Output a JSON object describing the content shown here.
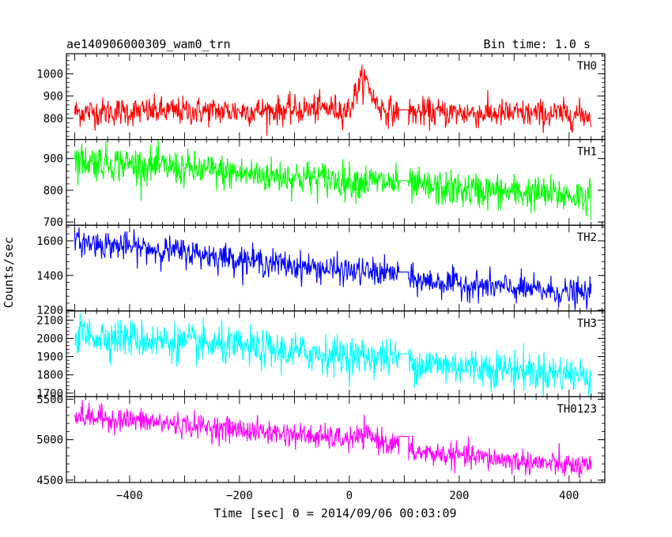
{
  "chart_data": {
    "type": "line",
    "title": "ae140906000309_wam0_trn",
    "subtitle": "Bin time: 1.0 s",
    "xlabel": "Time [sec] 0 = 2014/09/06 00:03:09",
    "ylabel": "Counts/sec",
    "xlim": [
      -515,
      465
    ],
    "xticks": [
      -400,
      -200,
      0,
      200,
      400
    ],
    "grid": false,
    "gap": [
      90,
      108
    ],
    "series": [
      {
        "name": "TH0",
        "color": "#ff0000",
        "ylim": [
          705,
          1090
        ],
        "yticks": [
          800,
          900,
          1000
        ],
        "x": [
          -500,
          -400,
          -300,
          -200,
          -100,
          -40,
          0,
          10,
          20,
          28,
          35,
          45,
          60,
          80,
          90,
          108,
          200,
          300,
          400,
          440
        ],
        "y": [
          828,
          830,
          832,
          832,
          836,
          845,
          835,
          905,
          960,
          975,
          950,
          880,
          842,
          830,
          828,
          826,
          824,
          820,
          818,
          815
        ],
        "noise": 32,
        "gap_level": 838
      },
      {
        "name": "TH1",
        "color": "#00ff00",
        "ylim": [
          690,
          960
        ],
        "yticks": [
          700,
          800,
          900
        ],
        "x": [
          -500,
          -400,
          -300,
          -200,
          -100,
          0,
          90,
          108,
          200,
          300,
          440
        ],
        "y": [
          895,
          882,
          868,
          852,
          842,
          830,
          822,
          812,
          802,
          793,
          780
        ],
        "noise": 28,
        "gap_level": 830
      },
      {
        "name": "TH2",
        "color": "#0000ff",
        "ylim": [
          1195,
          1690
        ],
        "yticks": [
          1200,
          1400,
          1600
        ],
        "x": [
          -500,
          -400,
          -300,
          -200,
          -100,
          0,
          90,
          108,
          200,
          300,
          440
        ],
        "y": [
          1595,
          1565,
          1535,
          1495,
          1455,
          1425,
          1410,
          1375,
          1350,
          1325,
          1290
        ],
        "noise": 40,
        "gap_level": 1420
      },
      {
        "name": "TH3",
        "color": "#00ffff",
        "ylim": [
          1680,
          2150
        ],
        "yticks": [
          1700,
          1800,
          1900,
          2000,
          2100
        ],
        "x": [
          -500,
          -400,
          -300,
          -200,
          -100,
          0,
          90,
          108,
          200,
          300,
          440
        ],
        "y": [
          2025,
          2000,
          1975,
          1950,
          1925,
          1905,
          1890,
          1868,
          1848,
          1830,
          1795
        ],
        "noise": 52,
        "gap_level": 1915
      },
      {
        "name": "TH0123",
        "color": "#ff00ff",
        "ylim": [
          4470,
          5530
        ],
        "yticks": [
          4500,
          5000,
          5500
        ],
        "x": [
          -500,
          -400,
          -300,
          -200,
          -100,
          0,
          30,
          90,
          108,
          200,
          300,
          440
        ],
        "y": [
          5290,
          5240,
          5180,
          5120,
          5060,
          5000,
          5050,
          4920,
          4850,
          4800,
          4740,
          4650
        ],
        "noise": 75,
        "gap_level": 5040
      }
    ]
  }
}
